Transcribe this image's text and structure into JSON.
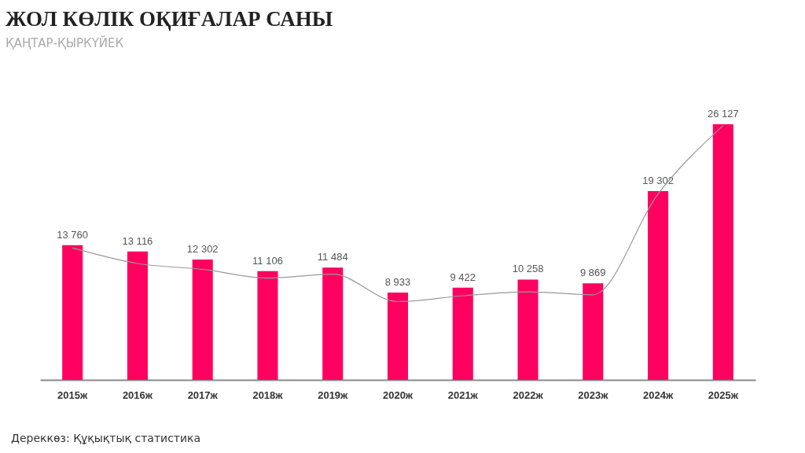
{
  "chart_data": {
    "type": "bar",
    "title": "ЖОЛ КӨЛІК ОҚИҒАЛАР САНЫ",
    "subtitle": "ҚАҢТАР-ҚЫРКҮЙЕК",
    "annotations": [
      "Дереккөз: Құқықтық статистика"
    ],
    "categories": [
      "2015ж",
      "2016ж",
      "2017ж",
      "2018ж",
      "2019ж",
      "2020ж",
      "2021ж",
      "2022ж",
      "2023ж",
      "2024ж",
      "2025ж"
    ],
    "series": [
      {
        "color": "#ff0060",
        "values": [
          13760,
          13116,
          12302,
          11106,
          11484,
          8933,
          9422,
          10258,
          9869,
          19302,
          26127
        ],
        "value_labels": [
          "13 760",
          "13 116",
          "12 302",
          "11 106",
          "11 484",
          "8 933",
          "9 422",
          "10 258",
          "9 869",
          "19 302",
          "26 127"
        ]
      },
      {
        "type": "line",
        "color": "#9a9a9a",
        "values": [
          13500,
          11900,
          11300,
          10400,
          10800,
          8000,
          8600,
          9000,
          8700,
          19000,
          26000
        ]
      }
    ],
    "tick_labels": "x",
    "grid": false
  }
}
